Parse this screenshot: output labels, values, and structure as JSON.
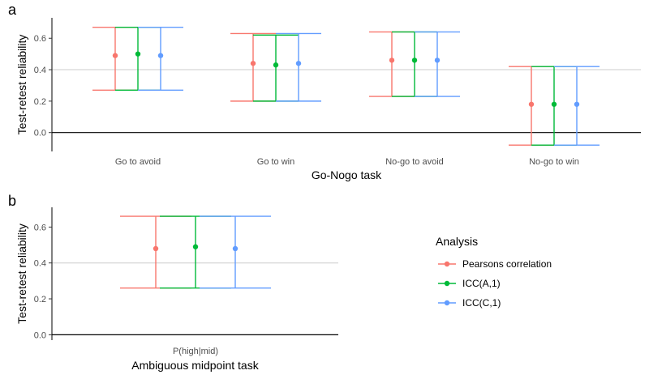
{
  "chart_data": [
    {
      "panel_label": "a",
      "type": "errorbar",
      "title": "",
      "xlabel": "Go-Nogo task",
      "ylabel": "Test-retest reliability",
      "ylim": [
        -0.12,
        0.73
      ],
      "yticks": [
        "0.0",
        "0.2",
        "0.4",
        "0.6"
      ],
      "reference_line": 0.4,
      "categories": [
        "Go to avoid",
        "Go to win",
        "No-go to avoid",
        "No-go to win"
      ],
      "series": [
        {
          "name": "Pearsons correlation",
          "estimates": [
            0.49,
            0.44,
            0.46,
            0.18
          ],
          "lower": [
            0.27,
            0.2,
            0.23,
            -0.08
          ],
          "upper": [
            0.67,
            0.63,
            0.64,
            0.42
          ]
        },
        {
          "name": "ICC(A,1)",
          "estimates": [
            0.5,
            0.43,
            0.46,
            0.18
          ],
          "lower": [
            0.27,
            0.2,
            0.23,
            -0.08
          ],
          "upper": [
            0.67,
            0.62,
            0.64,
            0.42
          ]
        },
        {
          "name": "ICC(C,1)",
          "estimates": [
            0.49,
            0.44,
            0.46,
            0.18
          ],
          "lower": [
            0.27,
            0.2,
            0.23,
            -0.08
          ],
          "upper": [
            0.67,
            0.63,
            0.64,
            0.42
          ]
        }
      ]
    },
    {
      "panel_label": "b",
      "type": "errorbar",
      "title": "",
      "xlabel": "Ambiguous midpoint task",
      "ylabel": "Test-retest reliability",
      "ylim": [
        -0.03,
        0.71
      ],
      "yticks": [
        "0.0",
        "0.2",
        "0.4",
        "0.6"
      ],
      "reference_line": 0.4,
      "categories": [
        "P(high|mid)"
      ],
      "series": [
        {
          "name": "Pearsons correlation",
          "estimates": [
            0.48
          ],
          "lower": [
            0.26
          ],
          "upper": [
            0.66
          ]
        },
        {
          "name": "ICC(A,1)",
          "estimates": [
            0.49
          ],
          "lower": [
            0.26
          ],
          "upper": [
            0.66
          ]
        },
        {
          "name": "ICC(C,1)",
          "estimates": [
            0.48
          ],
          "lower": [
            0.26
          ],
          "upper": [
            0.66
          ]
        }
      ]
    }
  ],
  "legend": {
    "title": "Analysis",
    "position": "right",
    "items": [
      {
        "label": "Pearsons correlation",
        "color": "#f8766d"
      },
      {
        "label": "ICC(A,1)",
        "color": "#00ba38"
      },
      {
        "label": "ICC(C,1)",
        "color": "#619cff"
      }
    ]
  }
}
